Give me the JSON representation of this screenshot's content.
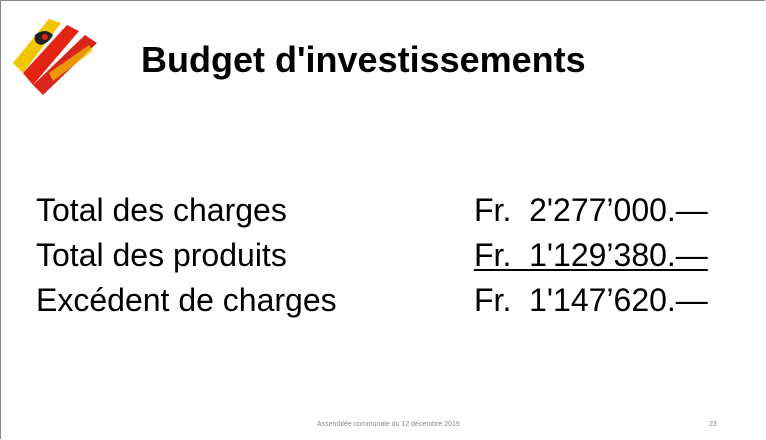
{
  "slide": {
    "title": "Budget d'investissements",
    "rows": [
      {
        "label": "Total des charges",
        "amount": "Fr.  2'277’000.—",
        "underline": false
      },
      {
        "label": "Total des produits",
        "amount": "Fr.  1'129’380.—",
        "underline": true
      },
      {
        "label": "Excédent de charges",
        "amount": "Fr.  1'147’620.—",
        "underline": false
      }
    ],
    "footer": "Assemblée communale du 12 décembre 2019",
    "page_number": "23"
  }
}
